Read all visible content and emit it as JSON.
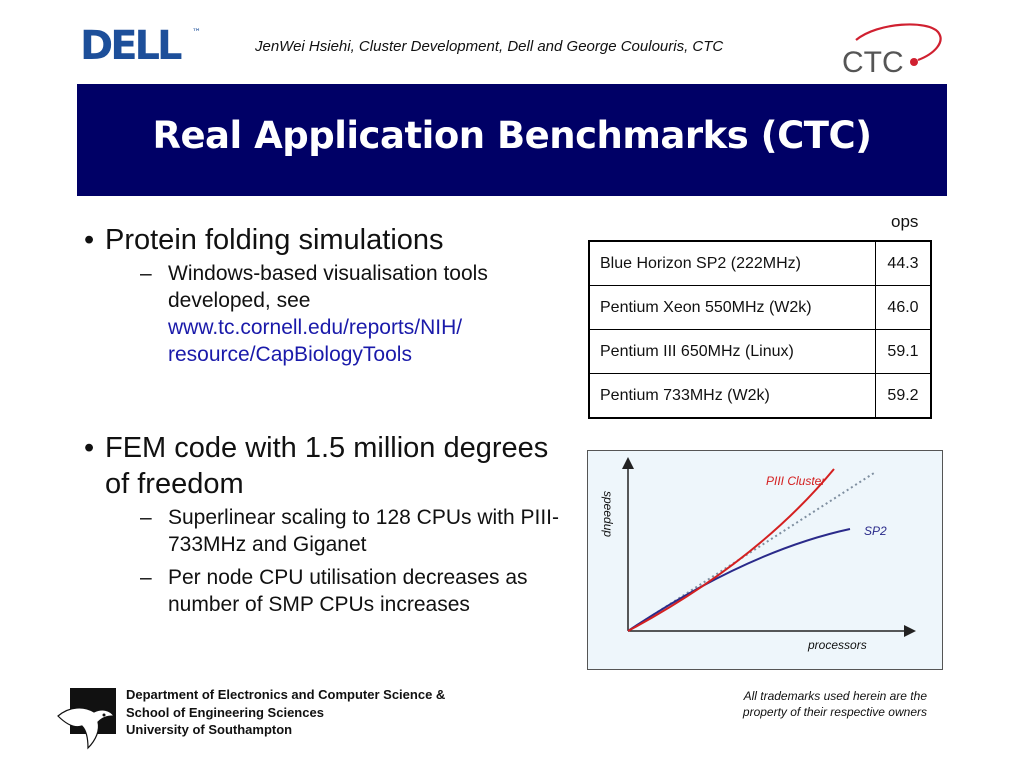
{
  "header": {
    "dell_logo_text": "DELL",
    "dell_logo_mark": "™",
    "credit": "JenWei Hsiehi, Cluster Development, Dell and George Coulouris, CTC",
    "ctc_logo_text": "CTC",
    "logo_colors": {
      "dell_blue": "#1d4f9a",
      "ctc_red": "#d02030",
      "ctc_gray": "#555555"
    }
  },
  "title": "Real Application Benchmarks (CTC)",
  "title_bar_color": "#000066",
  "bullets": [
    {
      "text": "Protein folding simulations",
      "subs": [
        {
          "text": "Windows-based visualisation tools developed, see",
          "link": "www.tc.cornell.edu/reports/NIH/ resource/CapBiologyTools"
        }
      ]
    },
    {
      "text": "FEM code with 1.5 million degrees of freedom",
      "subs": [
        {
          "text": "Superlinear scaling to 128 CPUs with PIII-733MHz and Giganet"
        },
        {
          "text": "Per node CPU utilisation decreases as number of SMP CPUs increases"
        }
      ]
    }
  ],
  "bullet_symbol": "•",
  "sub_symbol": "–",
  "ops_table": {
    "header": "ops",
    "rows": [
      {
        "name": "Blue Horizon SP2 (222MHz)",
        "value": "44.3"
      },
      {
        "name": "Pentium Xeon 550MHz (W2k)",
        "value": "46.0"
      },
      {
        "name": "Pentium III 650MHz (Linux)",
        "value": "59.1"
      },
      {
        "name": "Pentium 733MHz (W2k)",
        "value": "59.2"
      }
    ]
  },
  "chart_data": {
    "type": "line",
    "xlabel": "processors",
    "ylabel": "speedup",
    "series": [
      {
        "name": "PIII Cluster",
        "color": "#d42020",
        "curve": "superlinear"
      },
      {
        "name": "SP2",
        "color": "#2a2a8a",
        "curve": "sublinear"
      },
      {
        "name": "",
        "color": "#7f8fa0",
        "curve": "linear",
        "style": "dotted"
      }
    ],
    "grid": false,
    "background": "#eef6fb"
  },
  "footer": {
    "dept_lines": [
      "Department of Electronics and Computer Science &",
      "School of Engineering Sciences",
      "University of Southampton"
    ],
    "note_lines": [
      "All trademarks used herein are the",
      "property of their respective owners"
    ]
  }
}
